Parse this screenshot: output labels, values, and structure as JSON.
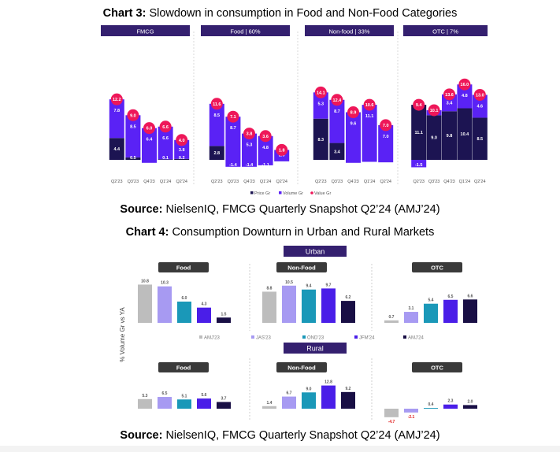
{
  "chart3_caption": {
    "label": "Chart 3:",
    "text": " Slowdown in consumption in Food and Non-Food Categories"
  },
  "source_1": {
    "label": "Source:",
    "text": " NielsenIQ, FMCG Quarterly Snapshot Q2’24 (AMJ’24)"
  },
  "chart4_caption": {
    "label": "Chart 4:",
    "text": " Consumption Downturn in Urban and Rural Markets"
  },
  "source_2": {
    "label": "Source:",
    "text": " NielsenIQ, FMCG Quarterly Snapshot Q2’24 (AMJ’24)"
  },
  "colors": {
    "header": "#34206f",
    "price": "#1c1452",
    "volume": "#5a22f5",
    "value": "#ee1759",
    "q1": "#bdbdbd",
    "q2": "#a79af2",
    "q3": "#1a98b8",
    "q4": "#4a1ee8",
    "q5": "#190f45",
    "negative_label": "#e02020"
  },
  "chart_data": [
    {
      "id": "chart3",
      "type": "bar",
      "stacked": true,
      "title": "Slowdown in consumption in Food and Non-Food Categories",
      "legend": [
        "Price Gr",
        "Volume Gr",
        "Value Gr"
      ],
      "categories": [
        "Q2'23",
        "Q3'23",
        "Q4'23",
        "Q1'24",
        "Q2'24"
      ],
      "panels": [
        {
          "title": "FMCG",
          "price": [
            4.4,
            0.5,
            -0.6,
            0.1,
            0.2
          ],
          "volume": [
            7.8,
            8.5,
            6.4,
            6.6,
            3.8
          ],
          "value": [
            12.2,
            9.0,
            6.0,
            6.6,
            4.0
          ],
          "price_labels": [
            "4.4",
            "0.5",
            "-0.6",
            "0.1",
            "0.2"
          ]
        },
        {
          "title": "Food | 60%",
          "price": [
            2.8,
            -1.4,
            -1.4,
            -1.1,
            -0.3
          ],
          "volume": [
            8.5,
            8.7,
            5.3,
            4.8,
            2.0
          ],
          "value": [
            11.6,
            7.1,
            3.8,
            3.6,
            1.8
          ],
          "price_labels": [
            "2.8",
            "-1.4",
            "-1.4",
            "-1.1",
            "-0.3"
          ]
        },
        {
          "title": "Non-food | 33%",
          "price": [
            8.3,
            3.4,
            -0.6,
            -0.4,
            -0.5
          ],
          "volume": [
            5.3,
            8.7,
            9.6,
            11.1,
            7.0
          ],
          "value": [
            14.1,
            12.4,
            8.9,
            10.6,
            7.0
          ],
          "price_labels": [
            "8.3",
            "3.4",
            "-0.6",
            "-0.4",
            "-0.5"
          ]
        },
        {
          "title": "OTC | 7%",
          "price": [
            11.1,
            9.0,
            9.8,
            10.4,
            8.5
          ],
          "volume": [
            -1.5,
            1.0,
            3.4,
            4.8,
            4.6
          ],
          "value": [
            9.4,
            10.1,
            13.6,
            16.0,
            13.0
          ],
          "price_labels": [
            "11.1",
            "9.0",
            "9.8",
            "10.4",
            "8.5"
          ]
        }
      ]
    },
    {
      "id": "chart4",
      "type": "bar",
      "title": "Consumption Downturn in Urban and Rural Markets",
      "ylabel": "% Volume Gr vs YA",
      "legend": [
        "AMJ'23",
        "JAS'23",
        "OND'23",
        "JFM'24",
        "AMJ'24"
      ],
      "sections": [
        {
          "title": "Urban",
          "panels": [
            {
              "title": "Food",
              "values": [
                10.8,
                10.3,
                6.0,
                4.3,
                1.5
              ]
            },
            {
              "title": "Non-Food",
              "values": [
                8.8,
                10.5,
                9.4,
                9.7,
                6.2
              ]
            },
            {
              "title": "OTC",
              "values": [
                0.7,
                3.1,
                5.4,
                6.5,
                6.6
              ]
            }
          ]
        },
        {
          "title": "Rural",
          "panels": [
            {
              "title": "Food",
              "values": [
                5.3,
                6.5,
                5.1,
                5.6,
                3.7
              ]
            },
            {
              "title": "Non-Food",
              "values": [
                1.4,
                6.7,
                9.0,
                12.8,
                9.2
              ]
            },
            {
              "title": "OTC",
              "values": [
                -4.7,
                -2.1,
                0.4,
                2.3,
                2.0
              ]
            }
          ]
        }
      ]
    }
  ]
}
